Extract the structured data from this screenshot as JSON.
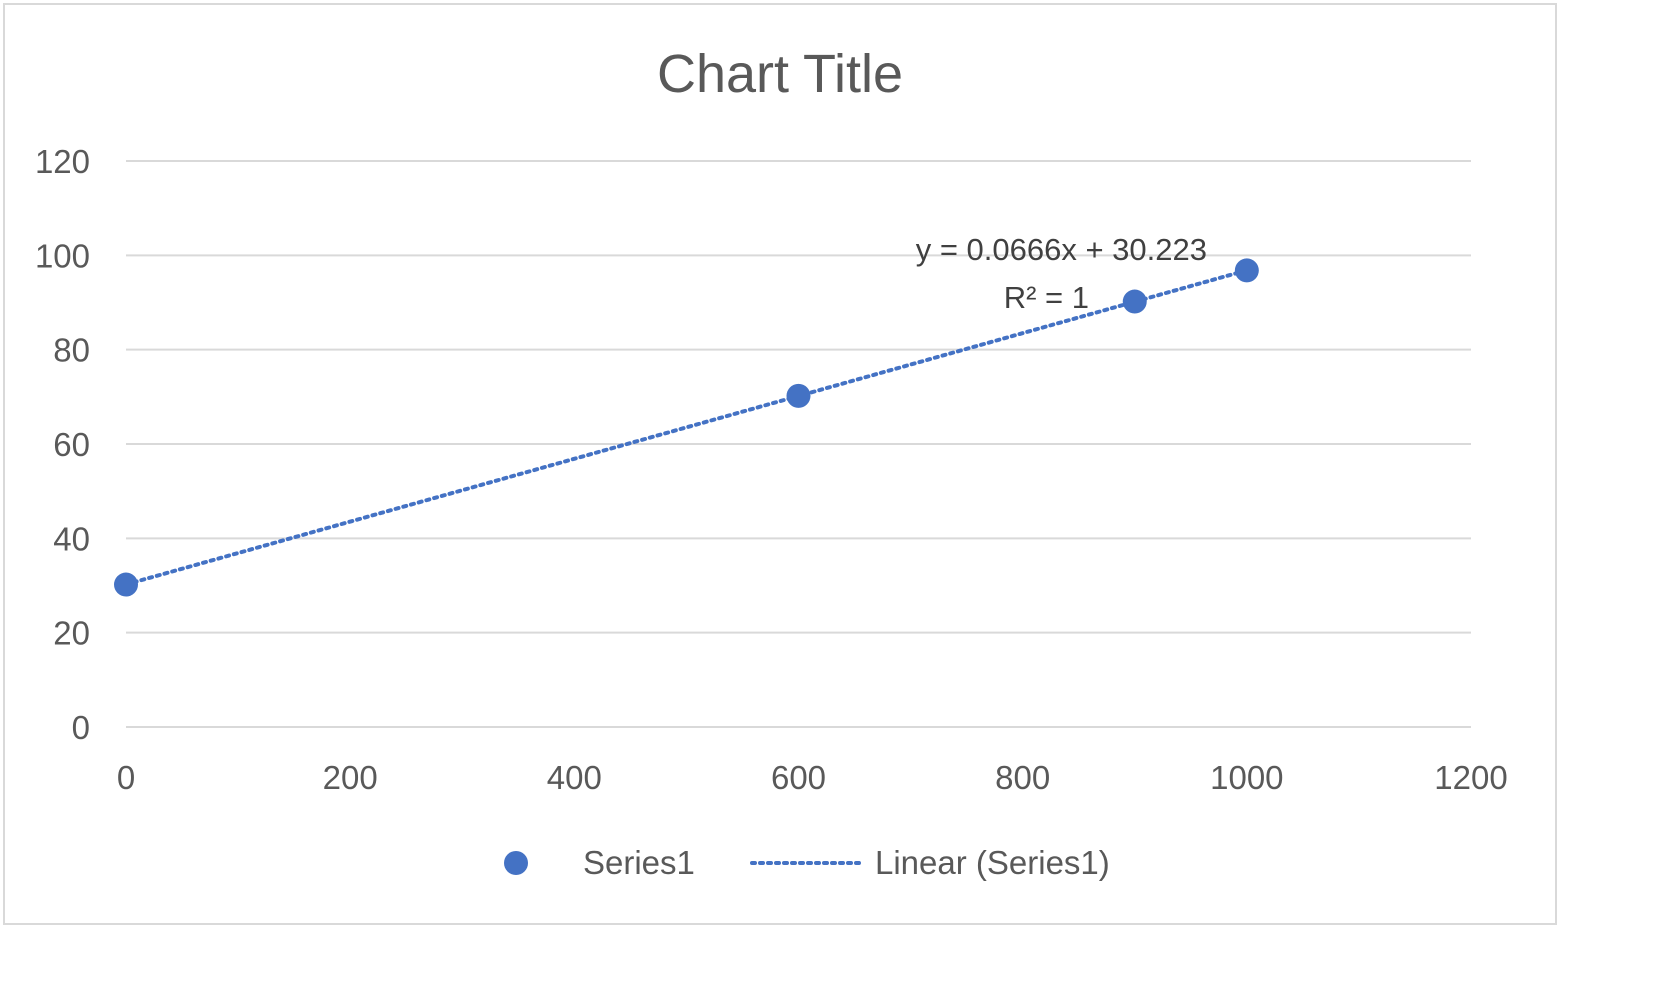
{
  "chart_data": {
    "type": "scatter",
    "title": "Chart Title",
    "xlabel": "",
    "ylabel": "",
    "xlim": [
      0,
      1200
    ],
    "ylim": [
      0,
      120
    ],
    "xticks": [
      0,
      200,
      400,
      600,
      800,
      1000,
      1200
    ],
    "yticks": [
      0,
      20,
      40,
      60,
      80,
      100,
      120
    ],
    "grid": "horizontal",
    "legend_position": "bottom",
    "series": [
      {
        "name": "Series1",
        "color": "#4472C4",
        "x": [
          0,
          600,
          900,
          1000
        ],
        "y": [
          30.2,
          70.2,
          90.2,
          96.8
        ]
      }
    ],
    "trendline": {
      "name": "Linear (Series1)",
      "type": "linear",
      "slope": 0.0666,
      "intercept": 30.223,
      "x_range": [
        0,
        1000
      ],
      "equation_label": "y = 0.0666x + 30.223",
      "r2_label": "R² = 1",
      "color": "#4472C4"
    }
  }
}
